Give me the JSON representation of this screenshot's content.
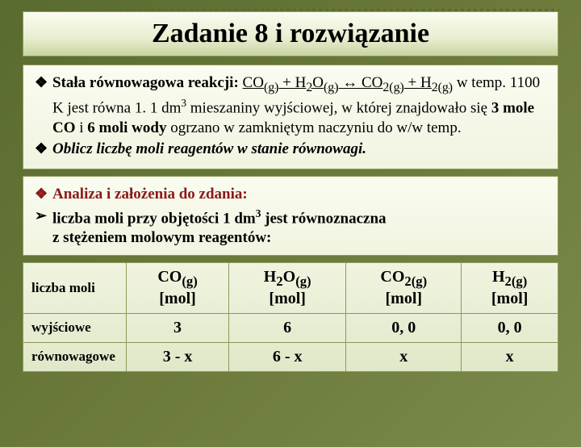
{
  "title": "Zadanie 8 i rozwiązanie",
  "problem": {
    "bullet": "❖",
    "line1_prefix": "Stała równowagowa reakcji:",
    "equation_html": "CO<sub>(g)</sub> + H<sub>2</sub>O<sub>(g)</sub> ↔ CO<sub>2(g)</sub> + H<sub>2(g)</sub>",
    "line2": "w temp. 1100 K jest równa 1. 1 dm",
    "line2_sup": "3",
    "line2_rest": " mieszaniny wyjściowej, w której znajdowało się ",
    "bold_part1": "3 mole CO",
    "mid": " i ",
    "bold_part2": "6 moli wody",
    "line2_end": " ogrzano w zamkniętym naczyniu do w/w temp.",
    "instruction": "Oblicz liczbę moli reagentów w stanie równowagi."
  },
  "analysis": {
    "bullet": "❖",
    "label": "Analiza i założenia do zdania:",
    "arrow": "➢",
    "line1": "liczba moli przy objętości 1 dm",
    "line1_sup": "3",
    "line1_rest": " jest równoznaczna",
    "line2": "z stężeniem molowym reagentów:"
  },
  "table": {
    "row_header": "liczba moli",
    "columns": [
      {
        "formula_html": "CO<sub>(g)</sub>",
        "unit": "[mol]"
      },
      {
        "formula_html": "H<sub>2</sub>O<sub>(g)</sub>",
        "unit": "[mol]"
      },
      {
        "formula_html": "CO<sub>2(g)</sub>",
        "unit": "[mol]"
      },
      {
        "formula_html": "H<sub>2(g)</sub>",
        "unit": "[mol]"
      }
    ],
    "rows": [
      {
        "label": "wyjściowe",
        "cells": [
          "3",
          "6",
          "0, 0",
          "0, 0"
        ]
      },
      {
        "label": "równowagowe",
        "cells": [
          "3 - x",
          "6 - x",
          "x",
          "x"
        ]
      }
    ]
  },
  "colors": {
    "bg_dark": "#5a6b2f",
    "box_border": "#8a9a5a",
    "analysis_red": "#8a1a1a"
  }
}
